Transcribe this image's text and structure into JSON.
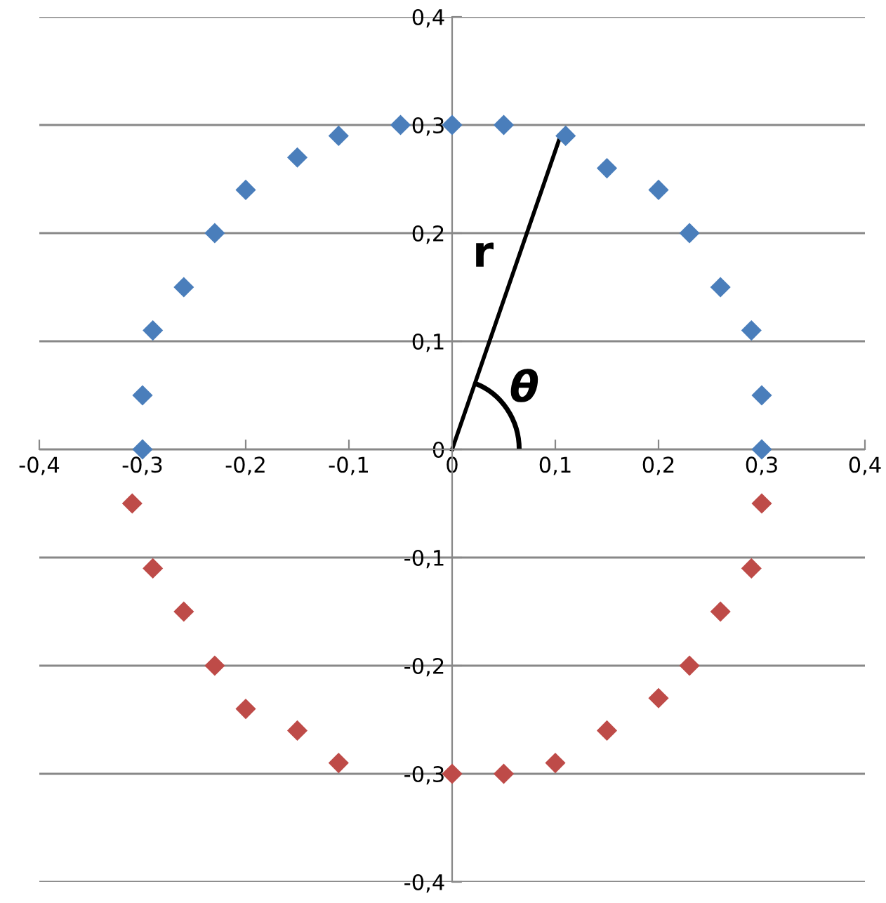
{
  "chart_data": {
    "type": "scatter",
    "marker": "diamond",
    "grid": "y",
    "xlim": [
      -0.4,
      0.4
    ],
    "ylim": [
      -0.4,
      0.4
    ],
    "xticks": [
      {
        "value": -0.4,
        "label": "-0,4"
      },
      {
        "value": -0.3,
        "label": "-0,3"
      },
      {
        "value": -0.2,
        "label": "-0,2"
      },
      {
        "value": -0.1,
        "label": "-0,1"
      },
      0,
      {
        "value": 0.1,
        "label": "0,1"
      },
      {
        "value": 0.2,
        "label": "0,2"
      },
      {
        "value": 0.3,
        "label": "0,3"
      },
      {
        "value": 0.4,
        "label": "0,4"
      }
    ],
    "yticks": [
      {
        "value": -0.4,
        "label": "-0,4"
      },
      {
        "value": -0.3,
        "label": "-0,3"
      },
      {
        "value": -0.2,
        "label": "-0,2"
      },
      {
        "value": -0.1,
        "label": "-0,1"
      },
      0,
      {
        "value": 0.1,
        "label": "0,1"
      },
      {
        "value": 0.2,
        "label": "0,2"
      },
      {
        "value": 0.3,
        "label": "0,3"
      },
      {
        "value": 0.4,
        "label": "0,4"
      }
    ],
    "annotations": [
      "r",
      "θ"
    ],
    "series": [
      {
        "color": "#4a7ebb",
        "x": [
          -0.3,
          -0.3,
          -0.29,
          -0.26,
          -0.23,
          -0.2,
          -0.15,
          -0.11,
          -0.05,
          0,
          0.05,
          0.11,
          0.15,
          0.2,
          0.23,
          0.26,
          0.29,
          0.3,
          0.3
        ],
        "values": [
          0,
          0.05,
          0.11,
          0.15,
          0.2,
          0.24,
          0.27,
          0.29,
          0.3,
          0.3,
          0.3,
          0.29,
          0.26,
          0.24,
          0.2,
          0.15,
          0.11,
          0.05,
          0
        ]
      },
      {
        "color": "#be4b48",
        "x": [
          -0.31,
          -0.29,
          -0.26,
          -0.23,
          -0.2,
          -0.15,
          -0.11,
          0,
          0.05,
          0.1,
          0.15,
          0.2,
          0.23,
          0.26,
          0.29,
          0.3
        ],
        "values": [
          -0.05,
          -0.11,
          -0.15,
          -0.2,
          -0.24,
          -0.26,
          -0.29,
          -0.3,
          -0.3,
          -0.29,
          -0.26,
          -0.23,
          -0.2,
          -0.15,
          -0.11,
          -0.05
        ]
      }
    ]
  }
}
